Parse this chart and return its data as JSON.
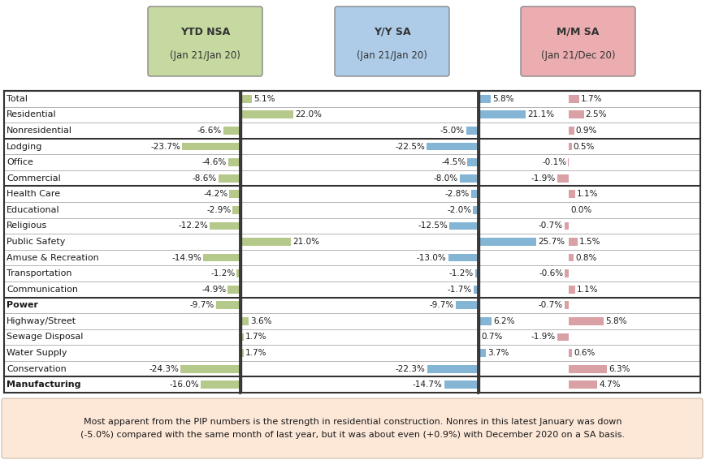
{
  "title_col1": "YTD NSA",
  "title_col1_sub": "(Jan 21/Jan 20)",
  "title_col2": "Y/Y SA",
  "title_col2_sub": "(Jan 21/Jan 20)",
  "title_col3": "M/M SA",
  "title_col3_sub": "(Jan 21/Dec 20)",
  "header_col1_color": "#c5d9a0",
  "header_col2_color": "#aecce8",
  "header_col3_color": "#ebadb0",
  "footer_bg": "#fde8d8",
  "footer_text_line1": "Most apparent from the PIP numbers is the strength in residential construction. Nonres in this latest January was down",
  "footer_text_line2": "(-5.0%) compared with the same month of last year, but it was about even (+0.9%) with December 2020 on a SA basis.",
  "rows": [
    {
      "label": "Total",
      "v1": 5.1,
      "v2": 5.8,
      "v3": 1.7,
      "section_top": true,
      "bold": false
    },
    {
      "label": "Residential",
      "v1": 22.0,
      "v2": 21.1,
      "v3": 2.5,
      "section_top": false,
      "bold": false
    },
    {
      "label": "Nonresidential",
      "v1": -6.6,
      "v2": -5.0,
      "v3": 0.9,
      "section_top": false,
      "bold": false
    },
    {
      "label": "Lodging",
      "v1": -23.7,
      "v2": -22.5,
      "v3": 0.5,
      "section_top": true,
      "bold": false
    },
    {
      "label": "Office",
      "v1": -4.6,
      "v2": -4.5,
      "v3": -0.1,
      "section_top": false,
      "bold": false
    },
    {
      "label": "Commercial",
      "v1": -8.6,
      "v2": -8.0,
      "v3": -1.9,
      "section_top": false,
      "bold": false
    },
    {
      "label": "Health Care",
      "v1": -4.2,
      "v2": -2.8,
      "v3": 1.1,
      "section_top": true,
      "bold": false
    },
    {
      "label": "Educational",
      "v1": -2.9,
      "v2": -2.0,
      "v3": 0.0,
      "section_top": false,
      "bold": false
    },
    {
      "label": "Religious",
      "v1": -12.2,
      "v2": -12.5,
      "v3": -0.7,
      "section_top": false,
      "bold": false
    },
    {
      "label": "Public Safety",
      "v1": 21.0,
      "v2": 25.7,
      "v3": 1.5,
      "section_top": false,
      "bold": false
    },
    {
      "label": "Amuse & Recreation",
      "v1": -14.9,
      "v2": -13.0,
      "v3": 0.8,
      "section_top": false,
      "bold": false
    },
    {
      "label": "Transportation",
      "v1": -1.2,
      "v2": -1.2,
      "v3": -0.6,
      "section_top": false,
      "bold": false
    },
    {
      "label": "Communication",
      "v1": -4.9,
      "v2": -1.7,
      "v3": 1.1,
      "section_top": false,
      "bold": false
    },
    {
      "label": "Power",
      "v1": -9.7,
      "v2": -9.7,
      "v3": -0.7,
      "section_top": true,
      "bold": true
    },
    {
      "label": "Highway/Street",
      "v1": 3.6,
      "v2": 6.2,
      "v3": 5.8,
      "section_top": false,
      "bold": false
    },
    {
      "label": "Sewage Disposal",
      "v1": 1.7,
      "v2": 0.7,
      "v3": -1.9,
      "section_top": false,
      "bold": false
    },
    {
      "label": "Water Supply",
      "v1": 1.7,
      "v2": 3.7,
      "v3": 0.6,
      "section_top": false,
      "bold": false
    },
    {
      "label": "Conservation",
      "v1": -24.3,
      "v2": -22.3,
      "v3": 6.3,
      "section_top": false,
      "bold": false
    },
    {
      "label": "Manufacturing",
      "v1": -16.0,
      "v2": -14.7,
      "v3": 4.7,
      "section_top": true,
      "bold": true
    }
  ],
  "bar_color1": "#b5c98a",
  "bar_color2": "#85b5d4",
  "bar_color3": "#d9a0a5",
  "text_color": "#1a1a1a",
  "thin_line_color": "#aaaaaa",
  "thick_line_color": "#333333",
  "col_sep_color": "#333333"
}
